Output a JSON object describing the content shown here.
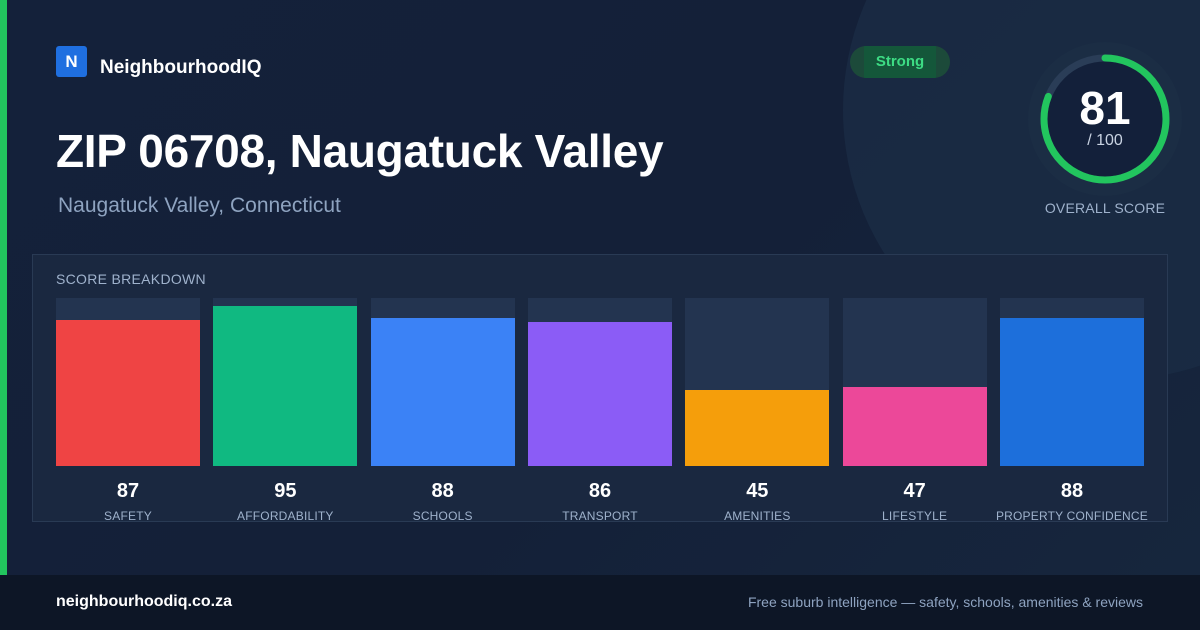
{
  "brand": {
    "logo_letter": "N",
    "name": "NeighbourhoodIQ"
  },
  "header": {
    "title": "ZIP 06708, Naugatuck Valley",
    "subtitle": "Naugatuck Valley, Connecticut"
  },
  "badge": {
    "label": "Strong",
    "color": "#3ddc84"
  },
  "overall": {
    "score": "81",
    "max": "/ 100",
    "score_fraction": 0.81,
    "label": "OVERALL SCORE",
    "ring_color": "#22c55e"
  },
  "breakdown": {
    "title": "SCORE BREAKDOWN"
  },
  "chart_data": {
    "type": "bar",
    "categories": [
      "SAFETY",
      "AFFORDABILITY",
      "SCHOOLS",
      "TRANSPORT",
      "AMENITIES",
      "LIFESTYLE",
      "PROPERTY CONFIDENCE"
    ],
    "values": [
      87,
      95,
      88,
      86,
      45,
      47,
      88
    ],
    "colors": [
      "#ef4444",
      "#10b981",
      "#3b82f6",
      "#8b5cf6",
      "#f59e0b",
      "#ec4899",
      "#1d6fdb"
    ],
    "ylim": [
      0,
      100
    ],
    "grid": false,
    "legend": "none"
  },
  "footer": {
    "site": "neighbourhoodiq.co.za",
    "tagline": "Free suburb intelligence — safety, schools, amenities & reviews"
  }
}
